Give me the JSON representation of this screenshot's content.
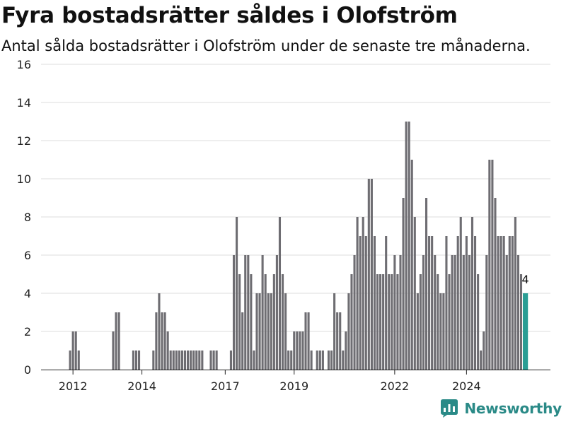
{
  "title": "Fyra bostadsrätter såldes i Olofström",
  "subtitle": "Antal sålda bostadsrätter i Olofström under de senaste tre månaderna.",
  "brand": {
    "name": "Newsworthy",
    "icon": "newsworthy-logo-icon",
    "color": "#2a8a87"
  },
  "chart_data": {
    "type": "bar",
    "ylim": [
      0,
      16
    ],
    "y_ticks": [
      0,
      2,
      4,
      6,
      8,
      10,
      12,
      14,
      16
    ],
    "x_tick_labels": [
      "2012",
      "2014",
      "2017",
      "2019",
      "2022",
      "2024"
    ],
    "x_tick_months": [
      10,
      34,
      63,
      87,
      122,
      147
    ],
    "grid": true,
    "bar_color": "#6e6d72",
    "highlight_color": "#2a9d94",
    "last_value_label": "4",
    "values": [
      0,
      0,
      0,
      0,
      0,
      0,
      0,
      0,
      0,
      1,
      2,
      2,
      1,
      0,
      0,
      0,
      0,
      0,
      0,
      0,
      0,
      0,
      0,
      0,
      2,
      3,
      3,
      0,
      0,
      0,
      0,
      1,
      1,
      1,
      0,
      0,
      0,
      0,
      1,
      3,
      4,
      3,
      3,
      2,
      1,
      1,
      1,
      1,
      1,
      1,
      1,
      1,
      1,
      1,
      1,
      1,
      0,
      0,
      1,
      1,
      1,
      0,
      0,
      0,
      0,
      1,
      6,
      8,
      5,
      3,
      6,
      6,
      5,
      1,
      4,
      4,
      6,
      5,
      4,
      4,
      5,
      6,
      8,
      5,
      4,
      1,
      1,
      2,
      2,
      2,
      2,
      3,
      3,
      1,
      0,
      1,
      1,
      1,
      0,
      1,
      1,
      4,
      3,
      3,
      1,
      2,
      4,
      5,
      6,
      8,
      7,
      8,
      7,
      10,
      10,
      7,
      5,
      5,
      5,
      7,
      5,
      5,
      6,
      5,
      6,
      9,
      13,
      13,
      11,
      8,
      4,
      5,
      6,
      9,
      7,
      7,
      6,
      5,
      4,
      4,
      7,
      5,
      6,
      6,
      7,
      8,
      6,
      7,
      6,
      8,
      7,
      5,
      1,
      2,
      6,
      11,
      11,
      9,
      7,
      7,
      7,
      6,
      7,
      7,
      8,
      6,
      5,
      4
    ]
  }
}
